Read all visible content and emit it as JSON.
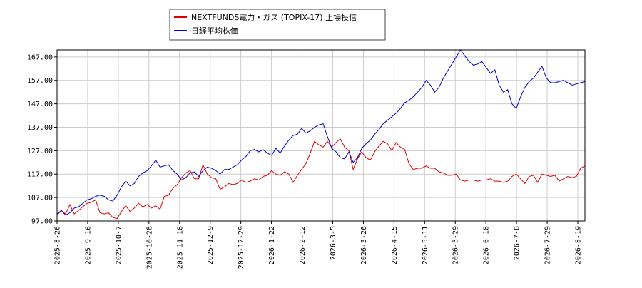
{
  "chart_data": {
    "type": "line",
    "title": "",
    "xlabel": "",
    "ylabel": "",
    "ylim": [
      97.0,
      170.0
    ],
    "y_ticks": [
      "97.00",
      "107.00",
      "117.00",
      "127.00",
      "137.00",
      "147.00",
      "157.00",
      "167.00"
    ],
    "x_ticks": [
      "2025-8-26",
      "2025-9-16",
      "2025-10-7",
      "2025-10-28",
      "2025-11-18",
      "2025-12-9",
      "2025-12-29",
      "2026-1-22",
      "2026-2-12",
      "2026-3-5",
      "2026-3-26",
      "2026-4-15",
      "2026-5-11",
      "2026-5-29",
      "2026-6-18",
      "2026-7-8",
      "2026-7-29",
      "2026-8-19"
    ],
    "grid": true,
    "legend_position": "top",
    "series": [
      {
        "name": "NEXTFUNDS電力・ガス (TOPIX-17) 上場投信",
        "color": "#dd0000",
        "values": [
          99.5,
          101.5,
          100.0,
          104.0,
          100.0,
          101.5,
          103.0,
          104.5,
          105.0,
          106.0,
          100.5,
          100.0,
          100.5,
          98.5,
          98.0,
          101.0,
          103.5,
          101.0,
          102.5,
          104.5,
          103.0,
          104.0,
          102.5,
          103.5,
          102.0,
          107.5,
          108.0,
          111.0,
          112.5,
          115.5,
          117.5,
          118.5,
          115.0,
          115.0,
          121.0,
          117.0,
          115.5,
          115.0,
          110.5,
          111.5,
          113.0,
          112.5,
          113.0,
          114.5,
          113.5,
          114.0,
          115.0,
          114.5,
          116.0,
          116.5,
          118.5,
          117.0,
          116.5,
          118.0,
          117.0,
          113.5,
          116.5,
          119.0,
          121.5,
          126.0,
          131.0,
          129.5,
          128.5,
          131.0,
          128.5,
          130.5,
          132.0,
          128.5,
          127.0,
          119.0,
          123.5,
          126.5,
          124.0,
          123.0,
          126.5,
          129.0,
          131.0,
          130.0,
          127.0,
          130.5,
          128.5,
          127.5,
          121.5,
          119.0,
          119.5,
          119.5,
          120.5,
          119.5,
          119.5,
          118.0,
          117.5,
          116.5,
          116.5,
          117.0,
          114.5,
          114.0,
          114.5,
          114.5,
          114.0,
          114.5,
          114.5,
          115.0,
          114.0,
          114.0,
          113.5,
          114.0,
          116.0,
          117.0,
          115.0,
          113.0,
          116.0,
          116.5,
          113.5,
          117.0,
          116.5,
          116.0,
          116.5,
          114.0,
          115.0,
          116.0,
          115.5,
          116.0,
          119.5,
          120.5
        ]
      },
      {
        "name": "日経平均株価",
        "color": "#0000cc",
        "values": [
          100.0,
          101.5,
          99.5,
          100.5,
          102.5,
          103.0,
          104.5,
          106.0,
          106.5,
          107.5,
          108.0,
          107.5,
          106.0,
          105.5,
          108.0,
          111.5,
          114.0,
          112.0,
          113.0,
          116.0,
          117.5,
          118.5,
          120.5,
          123.0,
          120.0,
          120.5,
          121.0,
          118.5,
          117.0,
          114.5,
          115.5,
          117.5,
          118.0,
          116.0,
          118.5,
          120.0,
          119.5,
          118.5,
          117.0,
          119.0,
          119.0,
          120.0,
          121.0,
          123.0,
          124.5,
          127.0,
          127.5,
          126.5,
          127.5,
          126.0,
          125.0,
          128.0,
          126.0,
          129.0,
          131.5,
          133.5,
          134.0,
          136.5,
          134.5,
          135.5,
          137.0,
          138.0,
          138.5,
          133.0,
          128.0,
          126.5,
          124.0,
          123.5,
          126.5,
          122.0,
          124.0,
          128.0,
          130.0,
          131.5,
          134.0,
          136.0,
          138.5,
          140.0,
          141.5,
          143.0,
          145.0,
          147.5,
          148.5,
          150.0,
          152.0,
          154.0,
          157.0,
          155.0,
          152.0,
          154.0,
          158.0,
          161.0,
          164.0,
          167.0,
          170.0,
          167.5,
          165.0,
          163.5,
          164.0,
          165.0,
          162.5,
          160.0,
          161.5,
          155.0,
          152.0,
          153.0,
          147.0,
          145.0,
          150.0,
          154.0,
          156.5,
          158.0,
          160.5,
          163.0,
          158.0,
          156.0,
          156.0,
          156.5,
          157.0,
          156.0,
          155.0,
          155.5,
          156.0,
          156.5
        ]
      }
    ]
  }
}
